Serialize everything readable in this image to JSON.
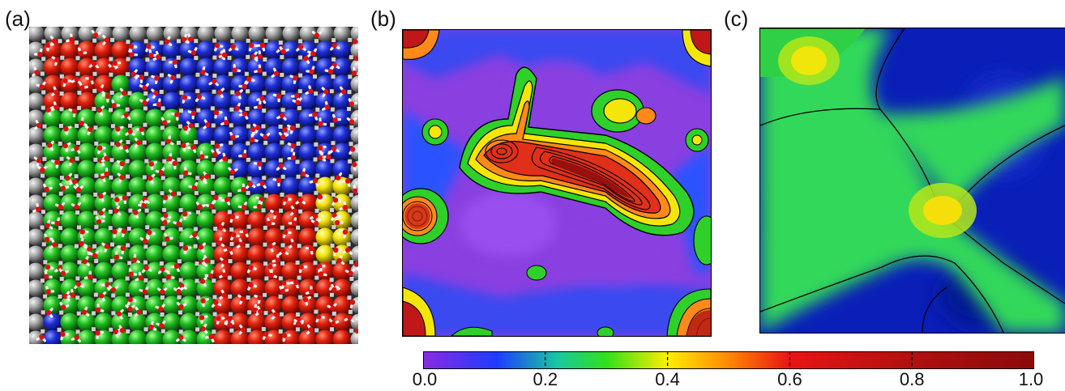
{
  "panels": [
    {
      "id": "a",
      "label": "(a)"
    },
    {
      "id": "b",
      "label": "(b)"
    },
    {
      "id": "c",
      "label": "(c)"
    }
  ],
  "colorbar": {
    "min": 0.0,
    "max": 1.0,
    "ticks": [
      {
        "value": 0.0,
        "label": "0.0"
      },
      {
        "value": 0.2,
        "label": "0.2"
      },
      {
        "value": 0.4,
        "label": "0.4"
      },
      {
        "value": 0.6,
        "label": "0.6"
      },
      {
        "value": 0.8,
        "label": "0.8"
      },
      {
        "value": 1.0,
        "label": "1.0"
      }
    ],
    "colors": [
      "#8a2be2",
      "#1e3cff",
      "#19c8a0",
      "#33e01a",
      "#ffee00",
      "#ff8800",
      "#e81414",
      "#b11010",
      "#8b0a0a"
    ]
  },
  "region_colors": {
    "red": "#e0200c",
    "blue": "#1f2fd6",
    "green": "#1fbf1f",
    "yellow": "#f2e00a",
    "gray": "#9a9a9a"
  }
}
